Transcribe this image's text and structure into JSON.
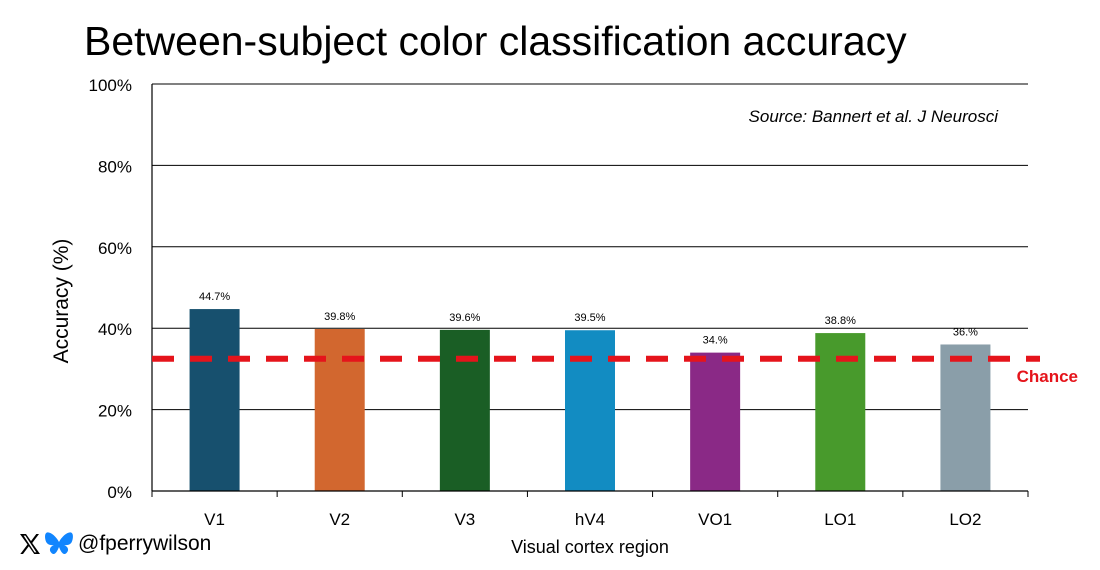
{
  "chart_data": {
    "type": "bar",
    "title": "Between-subject color classification accuracy",
    "xlabel": "Visual cortex region",
    "ylabel": "Accuracy (%)",
    "ylim": [
      0,
      100
    ],
    "yticks": [
      "0%",
      "20%",
      "40%",
      "60%",
      "80%",
      "100%"
    ],
    "ytick_values": [
      0,
      20,
      40,
      60,
      80,
      100
    ],
    "grid": true,
    "categories": [
      "V1",
      "V2",
      "V3",
      "hV4",
      "VO1",
      "LO1",
      "LO2"
    ],
    "values": [
      44.7,
      39.8,
      39.6,
      39.5,
      34.0,
      38.8,
      36.0
    ],
    "value_labels": [
      "44.7%",
      "39.8%",
      "39.6%",
      "39.5%",
      "34.%",
      "38.8%",
      "36.%"
    ],
    "bar_colors": [
      "#17506e",
      "#d2672f",
      "#1a5e25",
      "#128cc2",
      "#8a2986",
      "#489a2c",
      "#8a9ea9"
    ],
    "reference_line": {
      "label": "Chance",
      "value": 32.5,
      "color": "#e5141b"
    },
    "annotation": "Source: Bannert et al. J Neurosci"
  },
  "footer": {
    "handle": "@fperrywilson"
  },
  "icons": [
    "x-logo-icon",
    "bluesky-butterfly-icon"
  ]
}
